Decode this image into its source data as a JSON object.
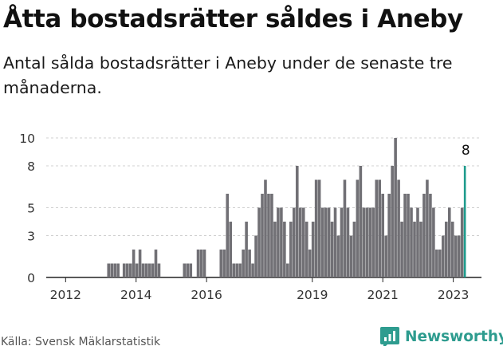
{
  "header": {
    "title": "Åtta bostadsrätter såldes i Aneby",
    "subtitle": "Antal sålda bostadsrätter i Aneby under de senaste tre månaderna."
  },
  "footer": {
    "source": "Källa: Svensk Mäklarstatistik",
    "brand": "Newsworthy"
  },
  "colors": {
    "bar": "#717075",
    "highlight": "#1e9b8c",
    "grid": "#d0d0d0",
    "brand": "#2e9c8f"
  },
  "chart_data": {
    "type": "bar",
    "x_unit": "year (fractional, one bar per quarter/period)",
    "ylim": [
      0,
      10
    ],
    "y_ticks": [
      0,
      3,
      5,
      8,
      10
    ],
    "x_ticks": [
      2012,
      2014,
      2016,
      2019,
      2021,
      2023
    ],
    "grid": "horizontal",
    "x": [
      2013.22,
      2013.31,
      2013.4,
      2013.49,
      2013.66,
      2013.75,
      2013.84,
      2013.93,
      2014.02,
      2014.11,
      2014.2,
      2014.29,
      2014.38,
      2014.47,
      2014.56,
      2014.65,
      2015.37,
      2015.46,
      2015.55,
      2015.76,
      2015.85,
      2015.94,
      2016.41,
      2016.5,
      2016.59,
      2016.68,
      2016.77,
      2016.86,
      2016.95,
      2017.04,
      2017.13,
      2017.22,
      2017.31,
      2017.4,
      2017.49,
      2017.58,
      2017.67,
      2017.76,
      2017.85,
      2017.94,
      2018.03,
      2018.12,
      2018.21,
      2018.3,
      2018.39,
      2018.48,
      2018.57,
      2018.66,
      2018.75,
      2018.84,
      2018.93,
      2019.02,
      2019.11,
      2019.2,
      2019.29,
      2019.38,
      2019.47,
      2019.56,
      2019.65,
      2019.74,
      2019.83,
      2019.92,
      2020.01,
      2020.1,
      2020.19,
      2020.28,
      2020.37,
      2020.46,
      2020.55,
      2020.64,
      2020.73,
      2020.82,
      2020.91,
      2021.0,
      2021.09,
      2021.18,
      2021.27,
      2021.36,
      2021.45,
      2021.54,
      2021.63,
      2021.72,
      2021.81,
      2021.9,
      2021.99,
      2022.08,
      2022.17,
      2022.26,
      2022.35,
      2022.44,
      2022.53,
      2022.62,
      2022.71,
      2022.8,
      2022.89,
      2022.98,
      2023.07,
      2023.16,
      2023.25,
      2023.34
    ],
    "values": [
      1,
      1,
      1,
      1,
      1,
      1,
      1,
      2,
      1,
      2,
      1,
      1,
      1,
      1,
      2,
      1,
      1,
      1,
      1,
      2,
      2,
      2,
      2,
      2,
      6,
      4,
      1,
      1,
      1,
      2,
      4,
      2,
      1,
      3,
      5,
      6,
      7,
      6,
      6,
      4,
      5,
      5,
      4,
      1,
      4,
      5,
      8,
      5,
      5,
      4,
      2,
      4,
      7,
      7,
      5,
      5,
      5,
      4,
      5,
      3,
      5,
      7,
      5,
      3,
      4,
      7,
      8,
      5,
      5,
      5,
      5,
      7,
      7,
      6,
      3,
      6,
      8,
      10,
      7,
      4,
      6,
      6,
      5,
      4,
      5,
      4,
      6,
      7,
      6,
      5,
      2,
      2,
      3,
      4,
      5,
      4,
      3,
      3,
      5,
      8
    ],
    "highlight_last": true,
    "annotation": "8"
  }
}
